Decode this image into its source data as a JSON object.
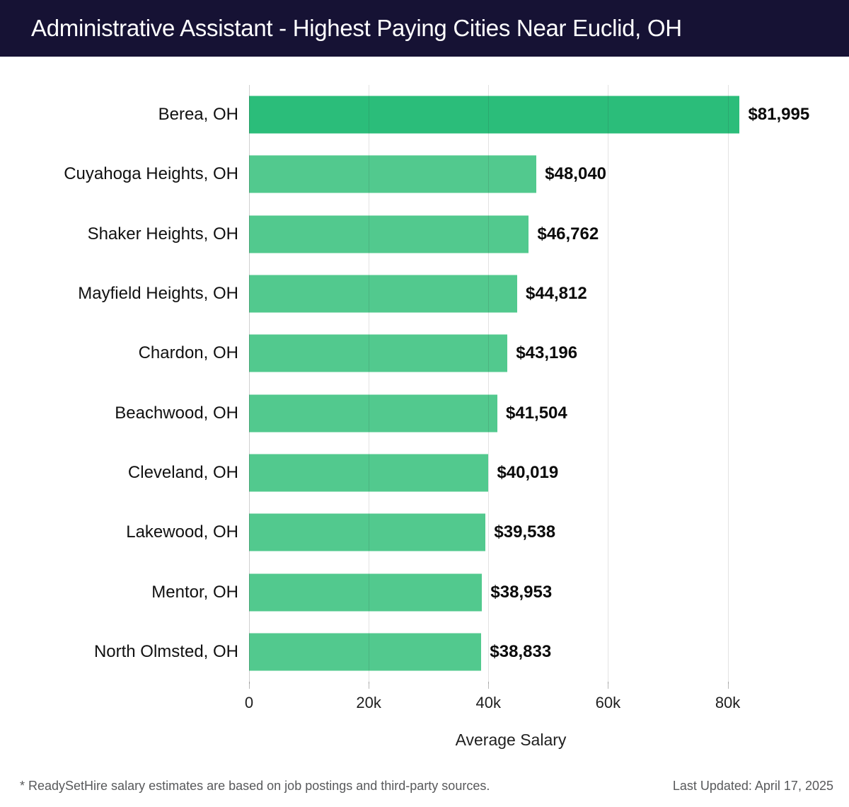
{
  "header": {
    "title": "Administrative Assistant - Highest Paying Cities Near Euclid, OH"
  },
  "chart_data": {
    "type": "bar",
    "orientation": "horizontal",
    "title": "Administrative Assistant - Highest Paying Cities Near Euclid, OH",
    "categories": [
      "Berea, OH",
      "Cuyahoga Heights, OH",
      "Shaker Heights, OH",
      "Mayfield Heights, OH",
      "Chardon, OH",
      "Beachwood, OH",
      "Cleveland, OH",
      "Lakewood, OH",
      "Mentor, OH",
      "North Olmsted, OH"
    ],
    "values": [
      81995,
      48040,
      46762,
      44812,
      43196,
      41504,
      40019,
      39538,
      38953,
      38833
    ],
    "value_labels": [
      "$81,995",
      "$48,040",
      "$46,762",
      "$44,812",
      "$43,196",
      "$41,504",
      "$40,019",
      "$39,538",
      "$38,953",
      "$38,833"
    ],
    "xlabel": "Average Salary",
    "x_tick_labels": [
      "0",
      "20k",
      "40k",
      "60k",
      "80k"
    ],
    "x_tick_values": [
      0,
      20000,
      40000,
      60000,
      80000
    ],
    "xlim": [
      0,
      87500
    ],
    "grid": "vertical",
    "legend": "none",
    "highlight_index": 0,
    "colors": {
      "highlight_bar": "#2bbd7a",
      "bar": "#52c98e",
      "header_bg": "#161234",
      "gridline": "#e0e0e0"
    }
  },
  "footer": {
    "note": "* ReadySetHire salary estimates are based on job postings and third-party sources.",
    "last_updated": "Last Updated: April 17, 2025"
  }
}
